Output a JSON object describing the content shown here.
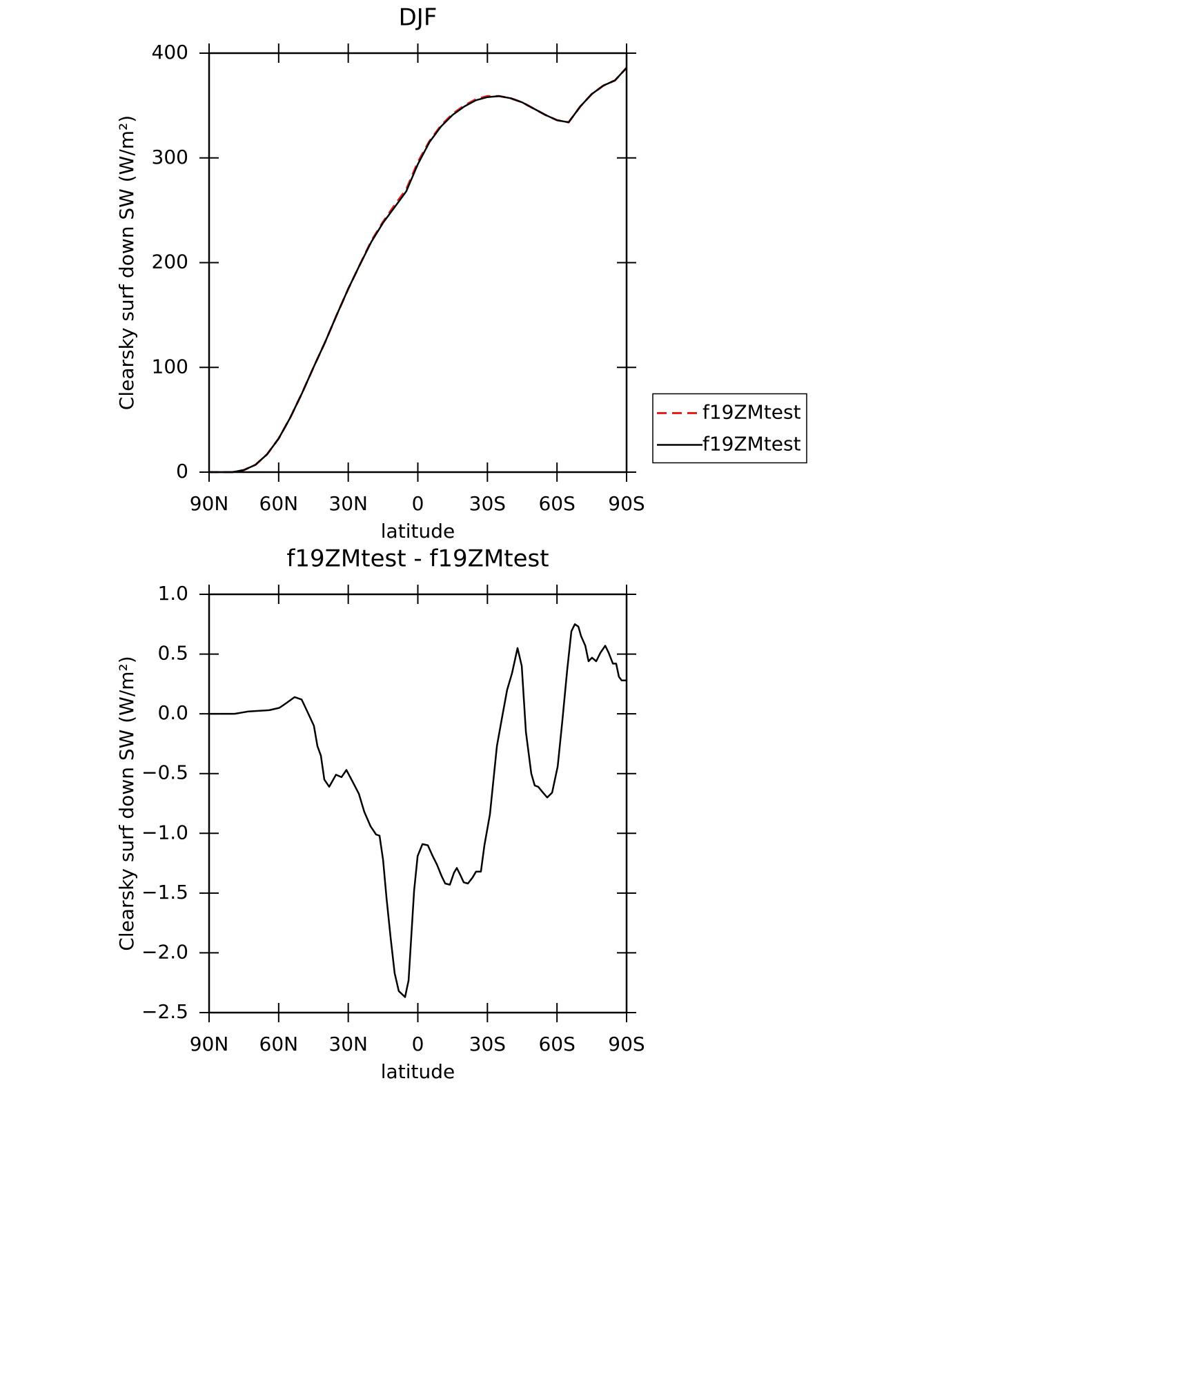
{
  "chart_data": [
    {
      "type": "line",
      "title": "DJF",
      "xlabel": "latitude",
      "ylabel": "Clearsky surf down SW (W/m²)",
      "x": [
        90,
        85,
        80,
        75,
        70,
        65,
        60,
        55,
        50,
        45,
        40,
        35,
        30,
        25,
        20,
        15,
        10,
        5,
        0,
        -5,
        -10,
        -15,
        -20,
        -25,
        -30,
        -35,
        -40,
        -45,
        -50,
        -55,
        -60,
        -65,
        -70,
        -75,
        -80,
        -85,
        -90
      ],
      "series": [
        {
          "name": "f19ZMtest",
          "color": "#e8201c",
          "linestyle": "dashed",
          "values": [
            0,
            0,
            0,
            2,
            7,
            17,
            32,
            52,
            75,
            100,
            124,
            150,
            175,
            198,
            221,
            239,
            255,
            270,
            296,
            316,
            331,
            342,
            350,
            356,
            359,
            359,
            357,
            353,
            347,
            341,
            336,
            334,
            349,
            361,
            369,
            374,
            386
          ]
        },
        {
          "name": "f19ZMtest",
          "color": "#000000",
          "linestyle": "solid",
          "values": [
            0,
            0,
            0,
            2,
            7,
            17,
            32,
            52,
            75,
            100,
            124,
            150,
            175,
            198,
            220,
            238,
            253,
            268,
            294,
            315,
            330,
            341,
            349,
            355,
            358,
            359,
            357,
            353,
            347,
            341,
            336,
            334,
            349,
            361,
            369,
            374,
            386
          ]
        }
      ],
      "xlim": [
        90,
        -90
      ],
      "xticks": [
        {
          "value": 90,
          "label": "90N"
        },
        {
          "value": 60,
          "label": "60N"
        },
        {
          "value": 30,
          "label": "30N"
        },
        0,
        {
          "value": -30,
          "label": "30S"
        },
        {
          "value": -60,
          "label": "60S"
        },
        {
          "value": -90,
          "label": "90S"
        }
      ],
      "ylim": [
        0,
        400
      ],
      "yticks": [
        0,
        100,
        200,
        300,
        400
      ],
      "legend": "right"
    },
    {
      "type": "line",
      "title": "f19ZMtest - f19ZMtest",
      "xlabel": "latitude",
      "ylabel": "Clearsky surf down SW (W/m²)",
      "x": [
        90.0,
        79.0,
        73.0,
        64.1,
        59.7,
        56.7,
        53.1,
        50.1,
        47.2,
        44.8,
        43.3,
        41.8,
        40.3,
        38.2,
        35.3,
        32.9,
        30.8,
        27.8,
        25.4,
        23.1,
        20.4,
        18.0,
        16.5,
        15.0,
        13.5,
        11.7,
        10.0,
        8.2,
        5.5,
        4.0,
        1.6,
        0.1,
        -2.0,
        -4.3,
        -6.4,
        -8.2,
        -10.3,
        -11.8,
        -13.8,
        -15.6,
        -16.8,
        -18.6,
        -19.8,
        -21.6,
        -23.6,
        -25.1,
        -27.2,
        -28.7,
        -31.1,
        -34.1,
        -36.5,
        -38.5,
        -40.6,
        -43.0,
        -44.8,
        -46.6,
        -48.9,
        -50.4,
        -51.9,
        -54.0,
        -55.8,
        -57.9,
        -60.3,
        -62.3,
        -64.4,
        -66.2,
        -67.7,
        -69.2,
        -70.4,
        -72.2,
        -73.6,
        -75.1,
        -76.9,
        -78.7,
        -80.8,
        -82.3,
        -84.1,
        -85.5,
        -86.7,
        -87.9,
        -90.0
      ],
      "series": [
        {
          "name": "f19ZMtest - f19ZMtest",
          "color": "#000000",
          "linestyle": "solid",
          "values": [
            0,
            0,
            0.02,
            0.03,
            0.05,
            0.09,
            0.14,
            0.12,
            0.0,
            -0.1,
            -0.27,
            -0.35,
            -0.55,
            -0.61,
            -0.51,
            -0.53,
            -0.47,
            -0.58,
            -0.67,
            -0.82,
            -0.94,
            -1.01,
            -1.02,
            -1.22,
            -1.54,
            -1.88,
            -2.17,
            -2.32,
            -2.37,
            -2.23,
            -1.48,
            -1.19,
            -1.09,
            -1.1,
            -1.19,
            -1.26,
            -1.36,
            -1.42,
            -1.43,
            -1.33,
            -1.29,
            -1.36,
            -1.41,
            -1.42,
            -1.37,
            -1.32,
            -1.32,
            -1.1,
            -0.84,
            -0.27,
            -0.01,
            0.2,
            0.34,
            0.55,
            0.4,
            -0.15,
            -0.5,
            -0.6,
            -0.61,
            -0.66,
            -0.7,
            -0.66,
            -0.44,
            -0.06,
            0.37,
            0.69,
            0.75,
            0.73,
            0.65,
            0.57,
            0.44,
            0.47,
            0.44,
            0.51,
            0.57,
            0.51,
            0.42,
            0.42,
            0.31,
            0.28,
            0.28
          ]
        }
      ],
      "xlim": [
        90,
        -90
      ],
      "xticks": [
        {
          "value": 90,
          "label": "90N"
        },
        {
          "value": 60,
          "label": "60N"
        },
        {
          "value": 30,
          "label": "30N"
        },
        0,
        {
          "value": -30,
          "label": "30S"
        },
        {
          "value": -60,
          "label": "60S"
        },
        {
          "value": -90,
          "label": "90S"
        }
      ],
      "ylim": [
        -2.5,
        1.0
      ],
      "yticks": [
        {
          "value": -2.5,
          "label": "−2.5"
        },
        {
          "value": -2.0,
          "label": "−2.0"
        },
        {
          "value": -1.5,
          "label": "−1.5"
        },
        {
          "value": -1.0,
          "label": "−1.0"
        },
        {
          "value": -0.5,
          "label": "−0.5"
        },
        {
          "value": 0,
          "label": "0.0"
        },
        0.5,
        {
          "value": 1.0,
          "label": "1.0"
        }
      ]
    }
  ]
}
